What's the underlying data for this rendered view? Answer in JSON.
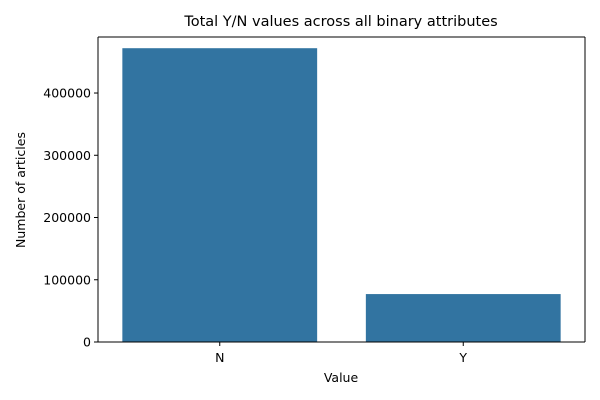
{
  "chart_data": {
    "type": "bar",
    "title": "Total Y/N values across all binary attributes",
    "xlabel": "Value",
    "ylabel": "Number of articles",
    "categories": [
      "N",
      "Y"
    ],
    "values": [
      472000,
      77000
    ],
    "ylim": [
      0,
      490000
    ],
    "yticks": [
      0,
      100000,
      200000,
      300000,
      400000
    ],
    "ytick_labels": [
      "0",
      "100000",
      "200000",
      "300000",
      "400000"
    ],
    "grid": false,
    "bar_color": "#3274a1"
  }
}
